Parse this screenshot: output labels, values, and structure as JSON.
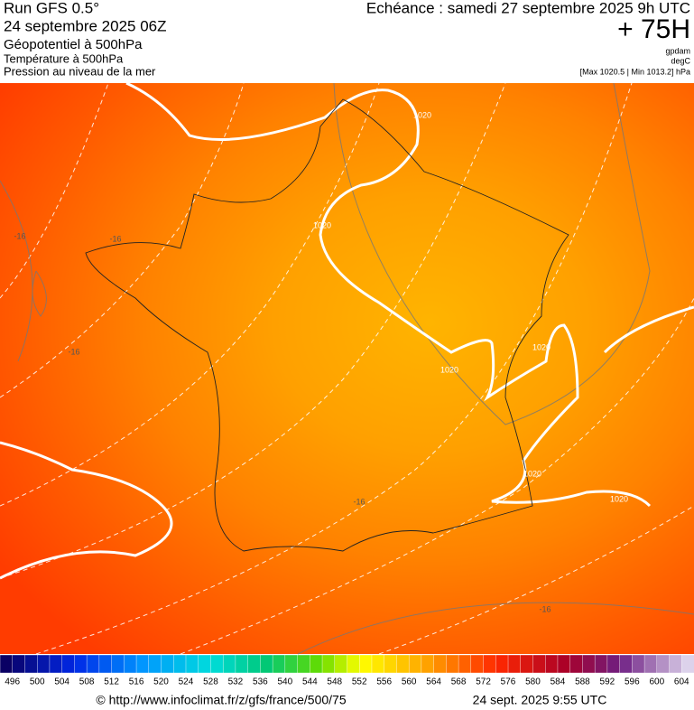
{
  "header": {
    "run": "Run GFS 0.5°",
    "date": "24 septembre 2025 06Z",
    "field1": "Géopotentiel à 500hPa",
    "field2": "Température à 500hPa",
    "field3": "Pression au niveau de la mer",
    "echeance": "Echéance : samedi 27 septembre 2025 9h UTC",
    "lead": "+ 75H",
    "unit1": "gpdam",
    "unit2": "degC",
    "range": "[Max 1020.5 | Min 1013.2] hPa"
  },
  "map": {
    "contour_labels": [
      "1020",
      "1020",
      "1020",
      "1020",
      "1020",
      "1020",
      "-16",
      "-16",
      "-16",
      "-16",
      "-16"
    ]
  },
  "colorbar": {
    "labels": [
      496,
      500,
      504,
      508,
      512,
      516,
      520,
      524,
      528,
      532,
      536,
      540,
      544,
      548,
      552,
      556,
      560,
      564,
      568,
      572,
      576,
      580,
      584,
      588,
      592,
      596,
      600,
      604
    ]
  },
  "footer": {
    "url": "© http://www.infoclimat.fr/z/gfs/france/500/75",
    "timestamp": "24 sept. 2025  9:55 UTC"
  }
}
